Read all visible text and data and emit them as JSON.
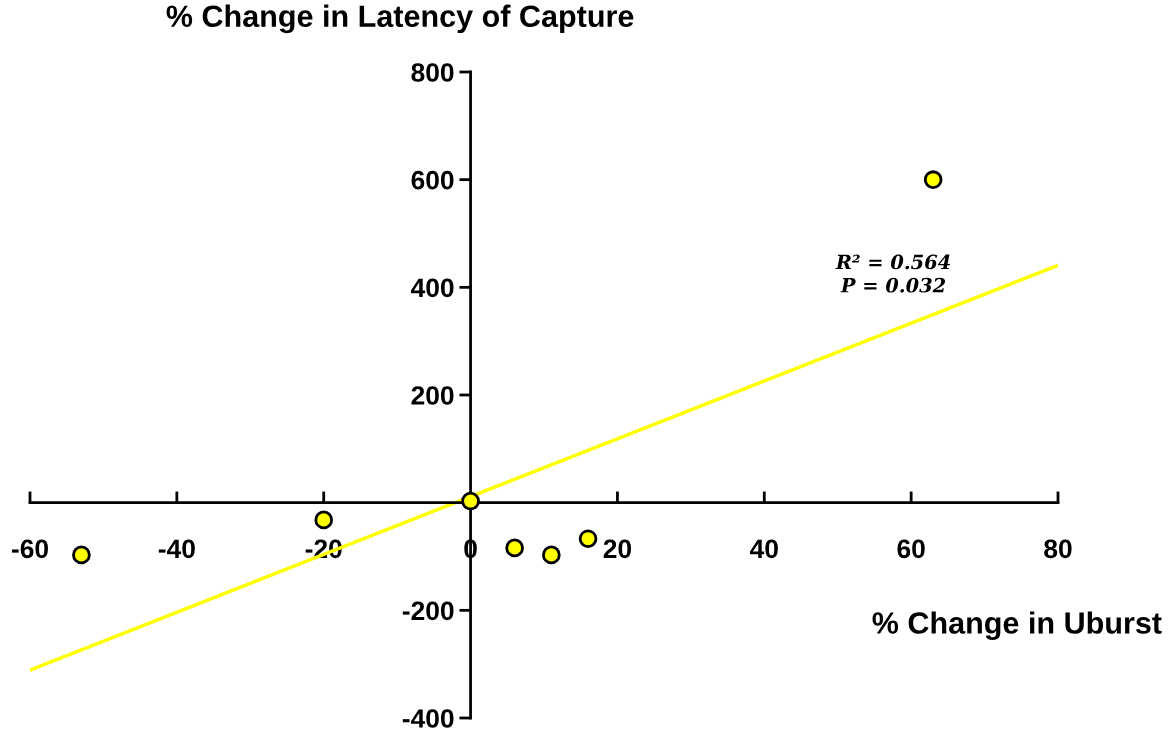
{
  "chart_data": {
    "type": "scatter",
    "ylabel": "% Change in Latency of Capture",
    "xlabel": "% Change in Uburst",
    "annotations": [
      "R² = 0.564",
      "P = 0.032"
    ],
    "series": [
      {
        "color": "#ffff00",
        "marker": "circle",
        "x": [
          -53,
          -20,
          0,
          6,
          11,
          16,
          63
        ],
        "values": [
          -97,
          -32,
          3,
          -84,
          -97,
          -67,
          600
        ]
      },
      {
        "type": "line",
        "color": "#ffff00",
        "marker": "none",
        "x": [
          -60,
          80
        ],
        "values": [
          -311,
          441
        ]
      }
    ],
    "xlim": [
      -60,
      80
    ],
    "ylim": [
      -400,
      800
    ],
    "xticks": [
      -60,
      -40,
      -20,
      0,
      20,
      40,
      60,
      80
    ],
    "yticks": [
      -400,
      -200,
      {
        "value": 0,
        "label": null
      },
      200,
      400,
      600,
      800
    ],
    "grid": false,
    "legend": false
  }
}
